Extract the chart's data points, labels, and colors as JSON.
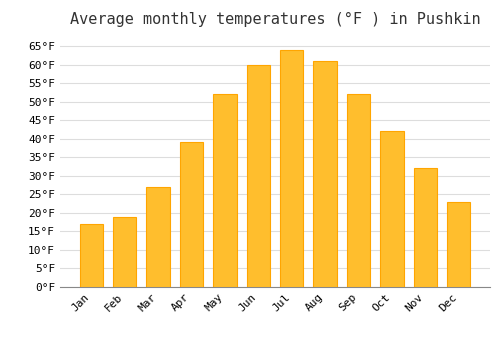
{
  "title": "Average monthly temperatures (°F ) in Pushkin",
  "months": [
    "Jan",
    "Feb",
    "Mar",
    "Apr",
    "May",
    "Jun",
    "Jul",
    "Aug",
    "Sep",
    "Oct",
    "Nov",
    "Dec"
  ],
  "values": [
    17,
    19,
    27,
    39,
    52,
    60,
    64,
    61,
    52,
    42,
    32,
    23
  ],
  "bar_color": "#FFBE2D",
  "bar_edge_color": "#FFA500",
  "background_color": "#ffffff",
  "plot_background_color": "#ffffff",
  "grid_color": "#dddddd",
  "ylim": [
    0,
    68
  ],
  "yticks": [
    0,
    5,
    10,
    15,
    20,
    25,
    30,
    35,
    40,
    45,
    50,
    55,
    60,
    65
  ],
  "title_fontsize": 11,
  "tick_fontsize": 8
}
